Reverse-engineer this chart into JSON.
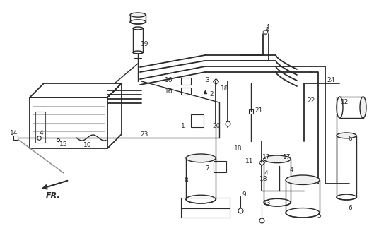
{
  "bg_color": "#ffffff",
  "line_color": "#2a2a2a",
  "figsize": [
    5.29,
    3.2
  ],
  "dpi": 100,
  "gray": "#888888",
  "dark": "#111111"
}
